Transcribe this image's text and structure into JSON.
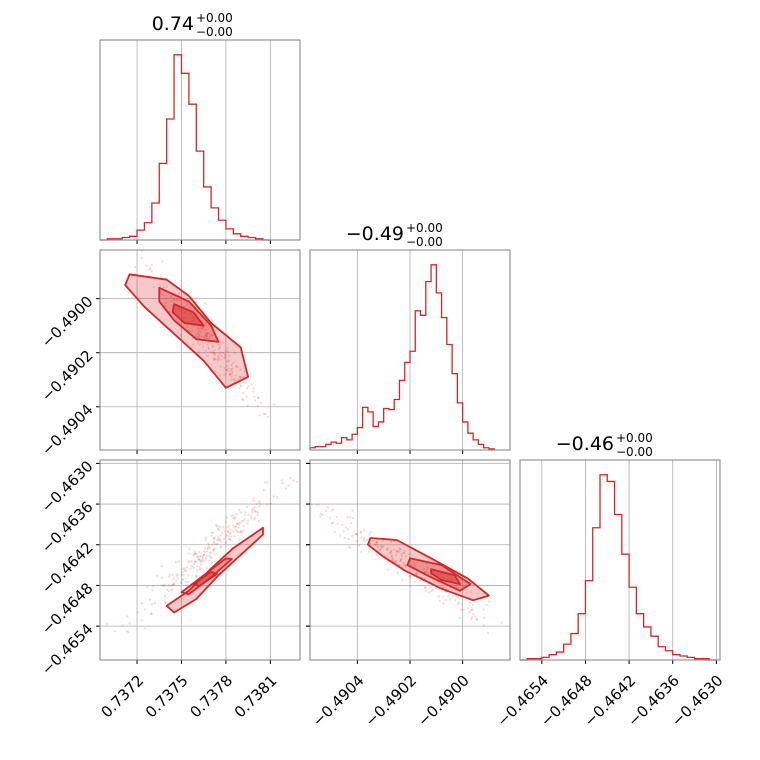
{
  "colors": {
    "series": "#d62728",
    "grid": "#b0b0b0",
    "frame": "#808080"
  },
  "chart_data": [
    {
      "type": "histogram",
      "panel": "diagonal-1",
      "title": {
        "value": "0.74",
        "plus": "+0.00",
        "minus": "−0.00"
      },
      "bins": [
        0.73695,
        0.737,
        0.73705,
        0.7371,
        0.73715,
        0.7372,
        0.73725,
        0.7373,
        0.73735,
        0.7374,
        0.73745,
        0.7375,
        0.73755,
        0.7376,
        0.73765,
        0.7377,
        0.73775,
        0.7378,
        0.73785,
        0.7379,
        0.73795,
        0.738,
        0.73805,
        0.7381
      ],
      "counts": [
        0,
        1,
        1,
        2,
        3,
        8,
        14,
        30,
        62,
        98,
        150,
        135,
        110,
        72,
        43,
        26,
        16,
        9,
        5,
        3,
        2,
        1,
        0
      ],
      "xticks": [
        "0.7372",
        "0.7375",
        "0.7378",
        "0.7381"
      ],
      "xtick_values": [
        0.7372,
        0.7375,
        0.7378,
        0.7381
      ],
      "xlim": [
        0.73695,
        0.7383
      ]
    },
    {
      "type": "histogram",
      "panel": "diagonal-2",
      "title": {
        "value": "−0.49",
        "plus": "+0.00",
        "minus": "−0.00"
      },
      "bins": [
        -0.49058,
        -0.49056,
        -0.49054,
        -0.49052,
        -0.4905,
        -0.49048,
        -0.49046,
        -0.49044,
        -0.49042,
        -0.4904,
        -0.49038,
        -0.49036,
        -0.49034,
        -0.49032,
        -0.4903,
        -0.49028,
        -0.49026,
        -0.49024,
        -0.49022,
        -0.4902,
        -0.49018,
        -0.49016,
        -0.49014,
        -0.49012,
        -0.4901,
        -0.49008,
        -0.49006,
        -0.49004,
        -0.49002,
        -0.49,
        -0.48998,
        -0.48996,
        -0.48994,
        -0.48992,
        -0.4899,
        -0.48988
      ],
      "counts": [
        2,
        3,
        3,
        5,
        7,
        6,
        11,
        9,
        14,
        20,
        38,
        34,
        21,
        25,
        37,
        36,
        45,
        62,
        78,
        88,
        124,
        120,
        150,
        165,
        140,
        118,
        94,
        68,
        42,
        25,
        15,
        9,
        5,
        2,
        1
      ],
      "xticks": [
        "−0.4904",
        "−0.4902",
        "−0.4900"
      ],
      "xtick_values": [
        -0.4904,
        -0.4902,
        -0.49
      ],
      "xlim": [
        -0.49058,
        -0.48982
      ]
    },
    {
      "type": "histogram",
      "panel": "diagonal-3",
      "title": {
        "value": "−0.46",
        "plus": "+0.00",
        "minus": "−0.00"
      },
      "bins": [
        -0.4657,
        -0.4656,
        -0.4655,
        -0.4654,
        -0.4653,
        -0.4652,
        -0.4651,
        -0.465,
        -0.4649,
        -0.4648,
        -0.4647,
        -0.4646,
        -0.4645,
        -0.4644,
        -0.4643,
        -0.4642,
        -0.4641,
        -0.464,
        -0.4639,
        -0.4638,
        -0.4637,
        -0.4636,
        -0.4635,
        -0.4634,
        -0.4633,
        -0.4632,
        -0.4631,
        -0.463
      ],
      "counts": [
        0,
        1,
        1,
        2,
        4,
        6,
        12,
        20,
        35,
        60,
        100,
        140,
        135,
        110,
        80,
        55,
        35,
        25,
        18,
        10,
        7,
        4,
        3,
        2,
        1,
        1,
        0
      ],
      "xticks": [
        "−0.4654",
        "−0.4648",
        "−0.4642",
        "−0.4636",
        "−0.4630"
      ],
      "xtick_values": [
        -0.4654,
        -0.4648,
        -0.4642,
        -0.4636,
        -0.463
      ],
      "xlim": [
        -0.4657,
        -0.46295
      ]
    },
    {
      "type": "scatter",
      "panel": "corner-2-1",
      "xlim": [
        0.73695,
        0.7383
      ],
      "ylim": [
        -0.49056,
        -0.48982
      ],
      "yticks": [
        "−0.4900",
        "−0.4902",
        "−0.4904"
      ],
      "ytick_values": [
        -0.49,
        -0.4902,
        -0.4904
      ],
      "trend": {
        "x": [
          0.73725,
          0.7381
        ],
        "y": [
          -0.48985,
          -0.49045
        ]
      },
      "contours": [
        [
          [
            0.73715,
            -0.48991
          ],
          [
            0.7374,
            -0.48993
          ],
          [
            0.73755,
            -0.48999
          ],
          [
            0.7377,
            -0.49009
          ],
          [
            0.7379,
            -0.49018
          ],
          [
            0.73795,
            -0.49029
          ],
          [
            0.7378,
            -0.49033
          ],
          [
            0.73765,
            -0.49023
          ],
          [
            0.73745,
            -0.49013
          ],
          [
            0.73725,
            -0.49003
          ],
          [
            0.73712,
            -0.48995
          ]
        ],
        [
          [
            0.73735,
            -0.48996
          ],
          [
            0.73755,
            -0.49001
          ],
          [
            0.7377,
            -0.4901
          ],
          [
            0.73775,
            -0.49016
          ],
          [
            0.7376,
            -0.49015
          ],
          [
            0.73745,
            -0.49008
          ],
          [
            0.73735,
            -0.49001
          ]
        ],
        [
          [
            0.73745,
            -0.49002
          ],
          [
            0.73758,
            -0.49005
          ],
          [
            0.73765,
            -0.4901
          ],
          [
            0.73752,
            -0.49009
          ],
          [
            0.73744,
            -0.49005
          ]
        ]
      ]
    },
    {
      "type": "scatter",
      "panel": "corner-3-1",
      "xlim": [
        0.73695,
        0.7383
      ],
      "ylim": [
        -0.4659,
        -0.46295
      ],
      "yticks": [
        "−0.4630",
        "−0.4636",
        "−0.4642",
        "−0.4648",
        "−0.4654"
      ],
      "ytick_values": [
        -0.463,
        -0.4636,
        -0.4642,
        -0.4648,
        -0.4654
      ],
      "trend": {
        "x": [
          0.7371,
          0.73825
        ],
        "y": [
          -0.46545,
          -0.46315
        ]
      },
      "contours": [
        [
          [
            0.7374,
            -0.4651
          ],
          [
            0.73755,
            -0.46488
          ],
          [
            0.7377,
            -0.46455
          ],
          [
            0.73785,
            -0.46425
          ],
          [
            0.73805,
            -0.46395
          ],
          [
            0.73805,
            -0.46405
          ],
          [
            0.7379,
            -0.46435
          ],
          [
            0.73775,
            -0.46465
          ],
          [
            0.7376,
            -0.465
          ],
          [
            0.73745,
            -0.4652
          ]
        ],
        [
          [
            0.7375,
            -0.4649
          ],
          [
            0.73765,
            -0.46465
          ],
          [
            0.7378,
            -0.4644
          ],
          [
            0.73784,
            -0.46441
          ],
          [
            0.7377,
            -0.46468
          ],
          [
            0.73755,
            -0.46493
          ]
        ],
        [
          [
            0.73758,
            -0.46478
          ],
          [
            0.7377,
            -0.4646
          ],
          [
            0.73774,
            -0.46463
          ],
          [
            0.73762,
            -0.46481
          ]
        ]
      ]
    },
    {
      "type": "scatter",
      "panel": "corner-3-2",
      "xlim": [
        -0.49058,
        -0.48982
      ],
      "ylim": [
        -0.4659,
        -0.46295
      ],
      "trend": {
        "x": [
          -0.49055,
          -0.48988
        ],
        "y": [
          -0.46365,
          -0.46535
        ]
      },
      "contours": [
        [
          [
            -0.49035,
            -0.4641
          ],
          [
            -0.49025,
            -0.46413
          ],
          [
            -0.49012,
            -0.4644
          ],
          [
            -0.48998,
            -0.4647
          ],
          [
            -0.4899,
            -0.46495
          ],
          [
            -0.48996,
            -0.46502
          ],
          [
            -0.49008,
            -0.46485
          ],
          [
            -0.49022,
            -0.46458
          ],
          [
            -0.4903,
            -0.46438
          ],
          [
            -0.49036,
            -0.4642
          ]
        ],
        [
          [
            -0.4902,
            -0.4644
          ],
          [
            -0.49008,
            -0.4645
          ],
          [
            -0.48997,
            -0.46478
          ],
          [
            -0.49001,
            -0.46488
          ],
          [
            -0.49013,
            -0.46466
          ],
          [
            -0.49021,
            -0.4645
          ]
        ],
        [
          [
            -0.49012,
            -0.46456
          ],
          [
            -0.49003,
            -0.46465
          ],
          [
            -0.49001,
            -0.46478
          ],
          [
            -0.49008,
            -0.46472
          ],
          [
            -0.49012,
            -0.46462
          ]
        ]
      ]
    }
  ]
}
